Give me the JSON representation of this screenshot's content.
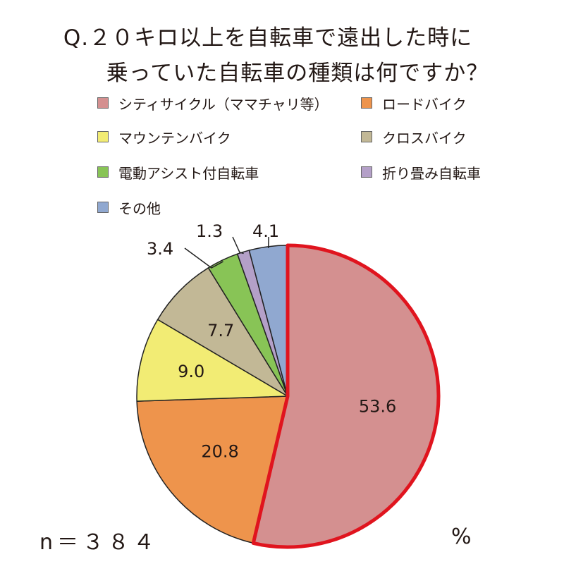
{
  "title_line1": "Q.２０キロ以上を自転車で遠出した時に",
  "title_line2": "乗っていた自転車の種類は何ですか？",
  "n_label": "n＝３８４",
  "unit_label": "%",
  "chart_data": {
    "type": "pie",
    "title": "Q.２０キロ以上を自転車で遠出した時に乗っていた自転車の種類は何ですか？",
    "unit": "%",
    "legend_position": "top",
    "slices": [
      {
        "name": "シティサイクル（ママチャリ等）",
        "value": 53.6,
        "label": "53.6",
        "color": "#D49090",
        "highlight": true
      },
      {
        "name": "ロードバイク",
        "value": 20.8,
        "label": "20.8",
        "color": "#EE944C",
        "highlight": false
      },
      {
        "name": "マウンテンバイク",
        "value": 9.0,
        "label": "9.0",
        "color": "#F2EC74",
        "highlight": false
      },
      {
        "name": "クロスバイク",
        "value": 7.7,
        "label": "7.7",
        "color": "#C2B896",
        "highlight": false
      },
      {
        "name": "電動アシスト付自転車",
        "value": 3.4,
        "label": "3.4",
        "color": "#88C456",
        "highlight": false
      },
      {
        "name": "折り畳み自転車",
        "value": 1.3,
        "label": "1.3",
        "color": "#B4A0C8",
        "highlight": false
      },
      {
        "name": "その他",
        "value": 4.1,
        "label": "4.1",
        "color": "#90A8D0",
        "highlight": false
      }
    ]
  }
}
